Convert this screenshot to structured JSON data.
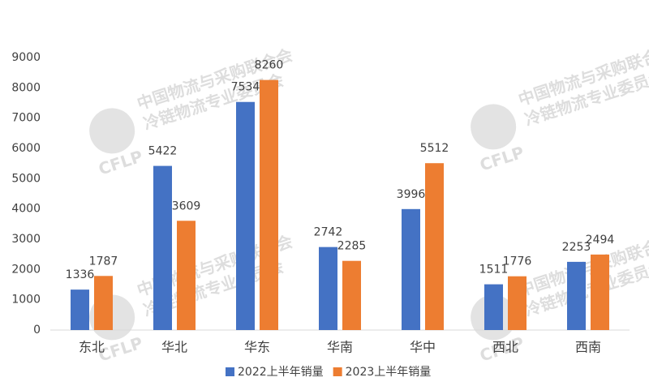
{
  "chart_data": {
    "type": "bar",
    "categories": [
      "东北",
      "华北",
      "华东",
      "华南",
      "华中",
      "西北",
      "西南"
    ],
    "series": [
      {
        "name": "2022上半年销量",
        "color": "#4472c4",
        "values": [
          1336,
          5422,
          7534,
          2742,
          3996,
          1511,
          2253
        ]
      },
      {
        "name": "2023上半年销量",
        "color": "#ed7d31",
        "values": [
          1787,
          3609,
          8260,
          2285,
          5512,
          1776,
          2494
        ]
      }
    ],
    "ylim": [
      0,
      9000
    ],
    "yticks": [
      0,
      1000,
      2000,
      3000,
      4000,
      5000,
      6000,
      7000,
      8000,
      9000
    ],
    "grid": false,
    "legend": "bottom",
    "watermark": [
      "中国物流与采购联合会",
      "冷链物流专业委员会",
      "CFLP"
    ]
  }
}
